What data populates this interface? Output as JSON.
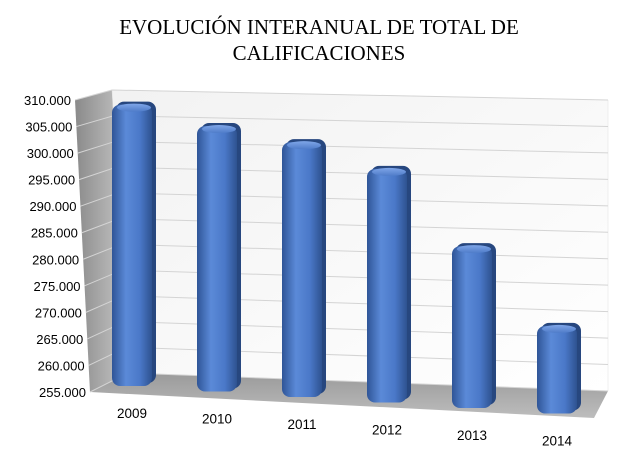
{
  "chart_data": {
    "type": "bar",
    "title_lines": [
      "EVOLUCIÓN INTERANUAL DE TOTAL DE",
      "CALIFICACIONES"
    ],
    "categories": [
      "2009",
      "2010",
      "2011",
      "2012",
      "2013",
      "2014"
    ],
    "values": [
      308000,
      305000,
      303000,
      299000,
      285500,
      271500
    ],
    "yticks": [
      "255.000",
      "260.000",
      "265.000",
      "270.000",
      "275.000",
      "280.000",
      "285.000",
      "290.000",
      "295.000",
      "300.000",
      "305.000",
      "310.000"
    ],
    "ylim": [
      255000,
      310000
    ],
    "grid": true,
    "legend": "none",
    "bar_color": "#4a76c8",
    "xlabel": "",
    "ylabel": ""
  }
}
